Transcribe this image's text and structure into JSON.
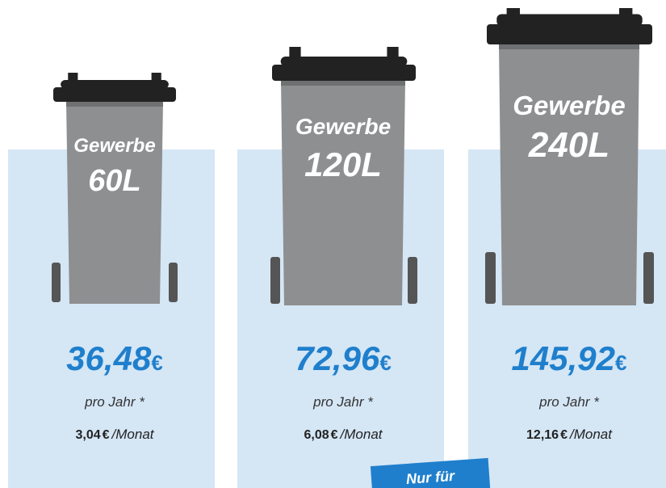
{
  "cards": [
    {
      "label": "Gewerbe",
      "size": "60L",
      "price": "36,48",
      "currency": "€",
      "per_year": "pro Jahr *",
      "monthly": "3,04",
      "monthly_currency": "€",
      "per_month": "/Monat"
    },
    {
      "label": "Gewerbe",
      "size": "120L",
      "price": "72,96",
      "currency": "€",
      "per_year": "pro Jahr *",
      "monthly": "6,08",
      "monthly_currency": "€",
      "per_month": "/Monat"
    },
    {
      "label": "Gewerbe",
      "size": "240L",
      "price": "145,92",
      "currency": "€",
      "per_year": "pro Jahr *",
      "monthly": "12,16",
      "monthly_currency": "€",
      "per_month": "/Monat"
    }
  ],
  "badge": "Nur für"
}
